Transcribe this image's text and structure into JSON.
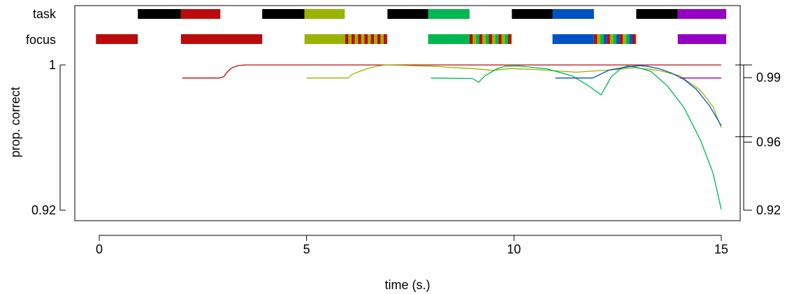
{
  "chart_data": {
    "type": "line",
    "title": "",
    "xlabel": "time (s.)",
    "ylabel": "prop. correct",
    "xlim": [
      -0.6,
      15.6
    ],
    "ylim": [
      0.92,
      1.0
    ],
    "x_ticks": [
      0,
      5,
      10,
      15
    ],
    "y_ticks_left": [
      {
        "value": 1.0,
        "label": "1"
      },
      {
        "value": 0.92,
        "label": "0.92"
      }
    ],
    "y_ticks_right": [
      {
        "value": 0.993,
        "label": "0.99"
      },
      {
        "value": 0.9575,
        "label": "0.96"
      },
      {
        "value": 0.92,
        "label": "0.92"
      }
    ],
    "right_axis_markers": [
      1.0,
      0.9605
    ],
    "grid": false,
    "task_label": "task",
    "focus_label": "focus",
    "task_bars": [
      {
        "x0": 0.93,
        "x1": 1.97,
        "color": "#000000"
      },
      {
        "x0": 1.97,
        "x1": 2.92,
        "color": "#bb0b0b"
      },
      {
        "x0": 3.93,
        "x1": 4.95,
        "color": "#000000"
      },
      {
        "x0": 4.95,
        "x1": 5.92,
        "color": "#99b400"
      },
      {
        "x0": 6.95,
        "x1": 7.93,
        "color": "#000000"
      },
      {
        "x0": 7.93,
        "x1": 8.93,
        "color": "#00b84f"
      },
      {
        "x0": 9.95,
        "x1": 10.93,
        "color": "#000000"
      },
      {
        "x0": 10.93,
        "x1": 11.93,
        "color": "#0052c4"
      },
      {
        "x0": 12.95,
        "x1": 13.95,
        "color": "#000000"
      },
      {
        "x0": 13.95,
        "x1": 15.12,
        "color": "#9400c4"
      }
    ],
    "focus_bars": [
      {
        "x0": -0.08,
        "x1": 0.93,
        "colors": [
          "#bb0b0b"
        ]
      },
      {
        "x0": 1.97,
        "x1": 3.93,
        "colors": [
          "#bb0b0b"
        ]
      },
      {
        "x0": 4.95,
        "x1": 5.93,
        "colors": [
          "#99b400"
        ]
      },
      {
        "x0": 5.93,
        "x1": 6.95,
        "colors": [
          "#bb0b0b",
          "#99b400"
        ]
      },
      {
        "x0": 7.93,
        "x1": 8.93,
        "colors": [
          "#00b84f"
        ]
      },
      {
        "x0": 8.93,
        "x1": 9.95,
        "colors": [
          "#bb0b0b",
          "#99b400",
          "#00b84f"
        ]
      },
      {
        "x0": 10.93,
        "x1": 11.93,
        "colors": [
          "#0052c4"
        ]
      },
      {
        "x0": 11.93,
        "x1": 12.95,
        "colors": [
          "#bb0b0b",
          "#99b400",
          "#00b84f",
          "#0052c4"
        ]
      },
      {
        "x0": 13.95,
        "x1": 15.12,
        "colors": [
          "#9400c4"
        ]
      }
    ],
    "series": [
      {
        "color": "#bb0b0b",
        "x": [
          2.0,
          2.9,
          3.0,
          3.1,
          3.2,
          3.35,
          3.5,
          4.0,
          6.0,
          8.0,
          10.0,
          12.0,
          14.0,
          15.0
        ],
        "y": [
          0.9928,
          0.9928,
          0.9935,
          0.9965,
          0.9985,
          0.9996,
          1.0,
          1.0,
          1.0,
          1.0,
          1.0,
          1.0,
          1.0,
          1.0
        ]
      },
      {
        "color": "#99b400",
        "x": [
          5.0,
          6.0,
          6.1,
          6.25,
          6.4,
          6.55,
          6.7,
          6.9,
          8.0,
          9.0,
          9.5,
          9.9,
          10.5,
          11.5,
          12.5,
          12.9,
          13.5,
          14.0,
          14.5,
          14.8,
          15.0
        ],
        "y": [
          0.9928,
          0.9928,
          0.9948,
          0.9962,
          0.9975,
          0.9985,
          0.9993,
          1.0,
          0.9993,
          0.998,
          0.997,
          0.998,
          0.9975,
          0.996,
          0.9975,
          0.9985,
          0.997,
          0.994,
          0.986,
          0.977,
          0.9655
        ]
      },
      {
        "color": "#00b84f",
        "x": [
          8.0,
          9.0,
          9.15,
          9.3,
          9.45,
          9.6,
          9.8,
          10.1,
          10.8,
          11.4,
          11.8,
          12.1,
          12.2,
          12.35,
          12.6,
          12.75,
          13.0,
          13.3,
          13.7,
          14.1,
          14.5,
          14.8,
          15.0
        ],
        "y": [
          0.9928,
          0.9925,
          0.9905,
          0.994,
          0.996,
          0.998,
          0.9993,
          0.9995,
          0.9978,
          0.994,
          0.9885,
          0.9835,
          0.9875,
          0.9935,
          0.9985,
          0.9995,
          0.9985,
          0.9965,
          0.9885,
          0.9765,
          0.9585,
          0.9405,
          0.9205
        ]
      },
      {
        "color": "#0052c4",
        "x": [
          11.0,
          11.5,
          11.9,
          12.3,
          12.5,
          12.8,
          13.0,
          13.2,
          13.5,
          13.8,
          14.1,
          14.4,
          14.7,
          14.9,
          15.0
        ],
        "y": [
          0.9928,
          0.9928,
          0.9928,
          0.9972,
          0.998,
          0.9991,
          0.9996,
          0.9993,
          0.998,
          0.9955,
          0.992,
          0.9865,
          0.978,
          0.9705,
          0.9665
        ]
      },
      {
        "color": "#9400c4",
        "x": [
          14.0,
          15.0
        ],
        "y": [
          0.9928,
          0.9928
        ]
      }
    ]
  }
}
